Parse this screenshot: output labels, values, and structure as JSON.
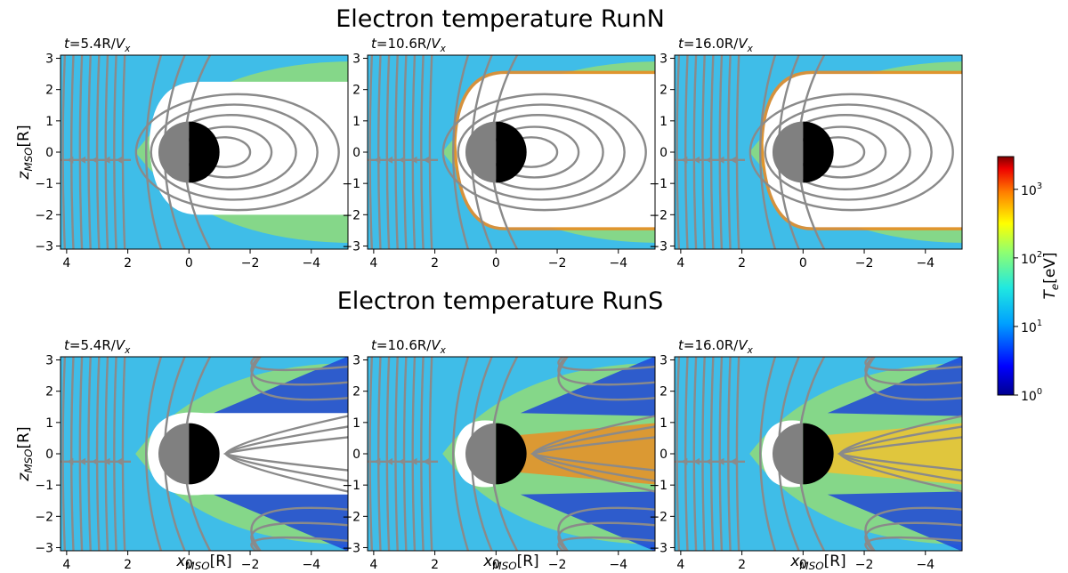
{
  "colors": {
    "solar_wind": "#3fbde8",
    "sheath": "#9de06a",
    "cavity": "#ffffff",
    "lobe": "#1f47d8",
    "hot_boundary": "#f08a1e",
    "streamline": "#8a8a8a",
    "planet_day": "#808080",
    "planet_night": "#000000"
  },
  "chart_data": {
    "type": "heatmap",
    "figure_titles": [
      "Electron temperature RunN",
      "Electron temperature RunS"
    ],
    "xlabel": "x_MSO[R]",
    "ylabel": "z_MSO[R]",
    "xlim": [
      4.2,
      -5.2
    ],
    "ylim": [
      -3.1,
      3.1
    ],
    "xticks": [
      4,
      2,
      0,
      -2,
      -4
    ],
    "yticks": [
      3,
      2,
      1,
      0,
      -1,
      -2,
      -3
    ],
    "colorbar": {
      "label": "T_e[eV]",
      "scale": "log",
      "range": [
        1,
        3000
      ],
      "ticks": [
        {
          "value": 1,
          "label": "10^0"
        },
        {
          "value": 10,
          "label": "10^1"
        },
        {
          "value": 100,
          "label": "10^2"
        },
        {
          "value": 1000,
          "label": "10^3"
        }
      ],
      "colormap": "jet"
    },
    "panels": [
      {
        "run": "RunN",
        "time": "t=5.4R/V_x",
        "row": 0,
        "col": 0
      },
      {
        "run": "RunN",
        "time": "t=10.6R/V_x",
        "row": 0,
        "col": 1
      },
      {
        "run": "RunN",
        "time": "t=16.0R/V_x",
        "row": 0,
        "col": 2
      },
      {
        "run": "RunS",
        "time": "t=5.4R/V_x",
        "row": 1,
        "col": 0
      },
      {
        "run": "RunS",
        "time": "t=10.6R/V_x",
        "row": 1,
        "col": 1
      },
      {
        "run": "RunS",
        "time": "t=16.0R/V_x",
        "row": 1,
        "col": 2
      }
    ]
  }
}
